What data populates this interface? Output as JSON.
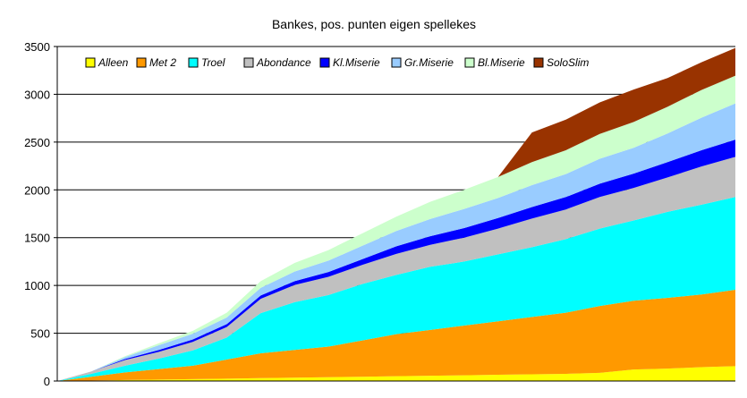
{
  "chart_data": {
    "type": "area",
    "stacked": true,
    "title": "Bankes, pos. punten eigen spellekes",
    "xlabel": "",
    "ylabel": "",
    "ylim": [
      0,
      3500
    ],
    "yticks": [
      "0",
      "500",
      "1000",
      "1500",
      "2000",
      "2500",
      "3000",
      "3500"
    ],
    "xlim": [
      0,
      100
    ],
    "grid": "horizontal",
    "legend_position": "top",
    "x": [
      0,
      5,
      10,
      15,
      20,
      25,
      30,
      35,
      40,
      45,
      50,
      55,
      60,
      65,
      70,
      75,
      80,
      85,
      90,
      95,
      100
    ],
    "series": [
      {
        "name": "Alleen",
        "color": "#ffff00",
        "values": [
          0,
          5,
          10,
          15,
          20,
          25,
          30,
          35,
          40,
          45,
          50,
          55,
          60,
          65,
          70,
          75,
          85,
          120,
          130,
          145,
          155
        ]
      },
      {
        "name": "Met 2",
        "color": "#ff9900",
        "values": [
          0,
          40,
          80,
          110,
          140,
          200,
          260,
          290,
          320,
          380,
          440,
          480,
          520,
          560,
          600,
          640,
          700,
          720,
          740,
          760,
          800
        ]
      },
      {
        "name": "Troel",
        "color": "#00ffff",
        "values": [
          0,
          30,
          70,
          110,
          160,
          230,
          420,
          500,
          540,
          590,
          620,
          660,
          670,
          700,
          730,
          770,
          810,
          840,
          900,
          940,
          970
        ]
      },
      {
        "name": "Abondance",
        "color": "#c0c0c0",
        "values": [
          0,
          25,
          60,
          70,
          90,
          110,
          150,
          180,
          190,
          200,
          220,
          230,
          250,
          270,
          300,
          310,
          330,
          340,
          360,
          400,
          420
        ]
      },
      {
        "name": "Kl.Miserie",
        "color": "#0000ff",
        "values": [
          0,
          0,
          10,
          20,
          25,
          30,
          35,
          40,
          50,
          60,
          80,
          90,
          100,
          110,
          120,
          130,
          140,
          150,
          160,
          170,
          180
        ]
      },
      {
        "name": "Gr.Miserie",
        "color": "#99ccff",
        "values": [
          0,
          0,
          20,
          50,
          60,
          70,
          80,
          100,
          120,
          140,
          160,
          180,
          200,
          210,
          230,
          240,
          260,
          270,
          300,
          340,
          380
        ]
      },
      {
        "name": "Bl.Miserie",
        "color": "#ccffcc",
        "values": [
          0,
          0,
          10,
          20,
          30,
          50,
          70,
          90,
          110,
          130,
          150,
          180,
          200,
          220,
          240,
          250,
          260,
          270,
          280,
          290,
          290
        ]
      },
      {
        "name": "SoloSlim",
        "color": "#993300",
        "values": [
          0,
          0,
          0,
          0,
          0,
          0,
          0,
          0,
          0,
          0,
          0,
          0,
          0,
          0,
          310,
          320,
          330,
          340,
          300,
          290,
          290
        ]
      }
    ]
  }
}
